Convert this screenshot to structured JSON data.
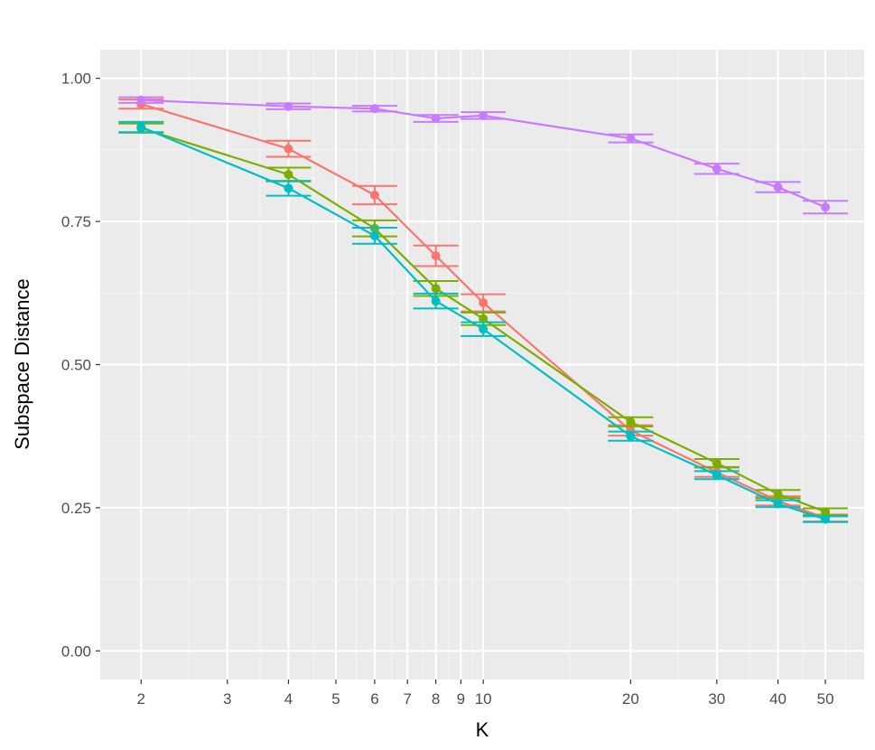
{
  "colors": {
    "panel": "#ebebeb",
    "grid_major": "#ffffff",
    "grid_minor": "#f5f5f5",
    "tick": "#333333",
    "series": [
      "#f8766d",
      "#7cae00",
      "#00bfc4",
      "#c77cff"
    ]
  },
  "chart_data": {
    "type": "line",
    "title": "",
    "xlabel": "K",
    "ylabel": "Subspace Distance",
    "x_scale": "log10",
    "xlim": [
      1.65,
      60
    ],
    "ylim": [
      -0.05,
      1.05
    ],
    "grid": true,
    "legend": "none",
    "x_ticks": [
      2,
      3,
      4,
      5,
      6,
      7,
      8,
      9,
      10,
      20,
      30,
      40,
      50
    ],
    "x_tick_labels": [
      "2",
      "3",
      "4",
      "5",
      "6",
      "7",
      "8",
      "9",
      "10",
      "20",
      "30",
      "40",
      "50"
    ],
    "x_minor_ticks": [
      2.5,
      3.5,
      4.5,
      5.5,
      6.5,
      7.5,
      8.5,
      9.5,
      15,
      25,
      35,
      45,
      55
    ],
    "y_ticks": [
      0,
      0.25,
      0.5,
      0.75,
      1
    ],
    "y_tick_labels": [
      "0.00",
      "0.25",
      "0.50",
      "0.75",
      "1.00"
    ],
    "y_minor_ticks": [
      0.125,
      0.375,
      0.625,
      0.875
    ],
    "x": [
      2,
      4,
      6,
      8,
      10,
      20,
      30,
      40,
      50
    ],
    "series": [
      {
        "color": "#f8766d",
        "values": [
          0.955,
          0.877,
          0.796,
          0.69,
          0.608,
          0.385,
          0.312,
          0.262,
          0.232
        ],
        "err": [
          0.008,
          0.014,
          0.016,
          0.018,
          0.015,
          0.009,
          0.008,
          0.008,
          0.006
        ]
      },
      {
        "color": "#7cae00",
        "values": [
          0.913,
          0.832,
          0.738,
          0.633,
          0.58,
          0.4,
          0.328,
          0.274,
          0.243
        ],
        "err": [
          0.008,
          0.012,
          0.014,
          0.013,
          0.011,
          0.008,
          0.007,
          0.007,
          0.006
        ]
      },
      {
        "color": "#00bfc4",
        "values": [
          0.915,
          0.808,
          0.725,
          0.611,
          0.562,
          0.375,
          0.307,
          0.257,
          0.23
        ],
        "err": [
          0.009,
          0.013,
          0.014,
          0.013,
          0.012,
          0.008,
          0.007,
          0.006,
          0.005
        ]
      },
      {
        "color": "#c77cff",
        "values": [
          0.962,
          0.951,
          0.947,
          0.93,
          0.935,
          0.895,
          0.842,
          0.81,
          0.775
        ],
        "err": [
          0.005,
          0.005,
          0.005,
          0.006,
          0.006,
          0.007,
          0.009,
          0.009,
          0.011
        ]
      }
    ]
  }
}
